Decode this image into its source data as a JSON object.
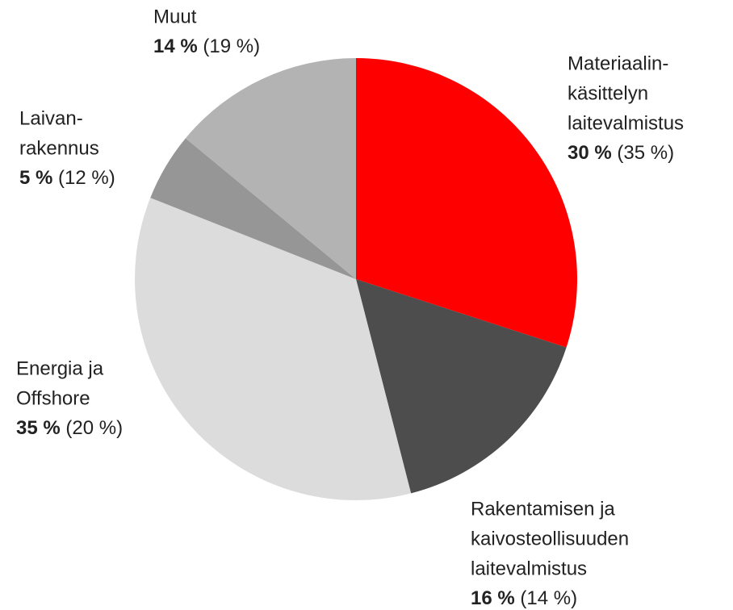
{
  "chart_data": {
    "type": "pie",
    "categories": [
      [
        "Materiaalin-",
        "käsittelyn",
        "laitevalmistus"
      ],
      [
        "Rakentamisen ja",
        "kaivosteollisuuden",
        "laitevalmistus"
      ],
      [
        "Energia ja",
        "Offshore"
      ],
      [
        "Laivan-",
        "rakennus"
      ],
      [
        "Muut"
      ]
    ],
    "values": [
      30,
      16,
      35,
      5,
      14
    ],
    "value_labels": [
      "30 %",
      "16 %",
      "35 %",
      "5 %",
      "14 %"
    ],
    "previous_values": [
      35,
      14,
      20,
      12,
      19
    ],
    "previous_value_labels": [
      "(35 %)",
      "(14 %)",
      "(20 %)",
      "(12 %)",
      "(19 %)"
    ],
    "colors": [
      "#ff0000",
      "#4d4d4d",
      "#dcdcdc",
      "#969696",
      "#b3b3b3"
    ]
  }
}
